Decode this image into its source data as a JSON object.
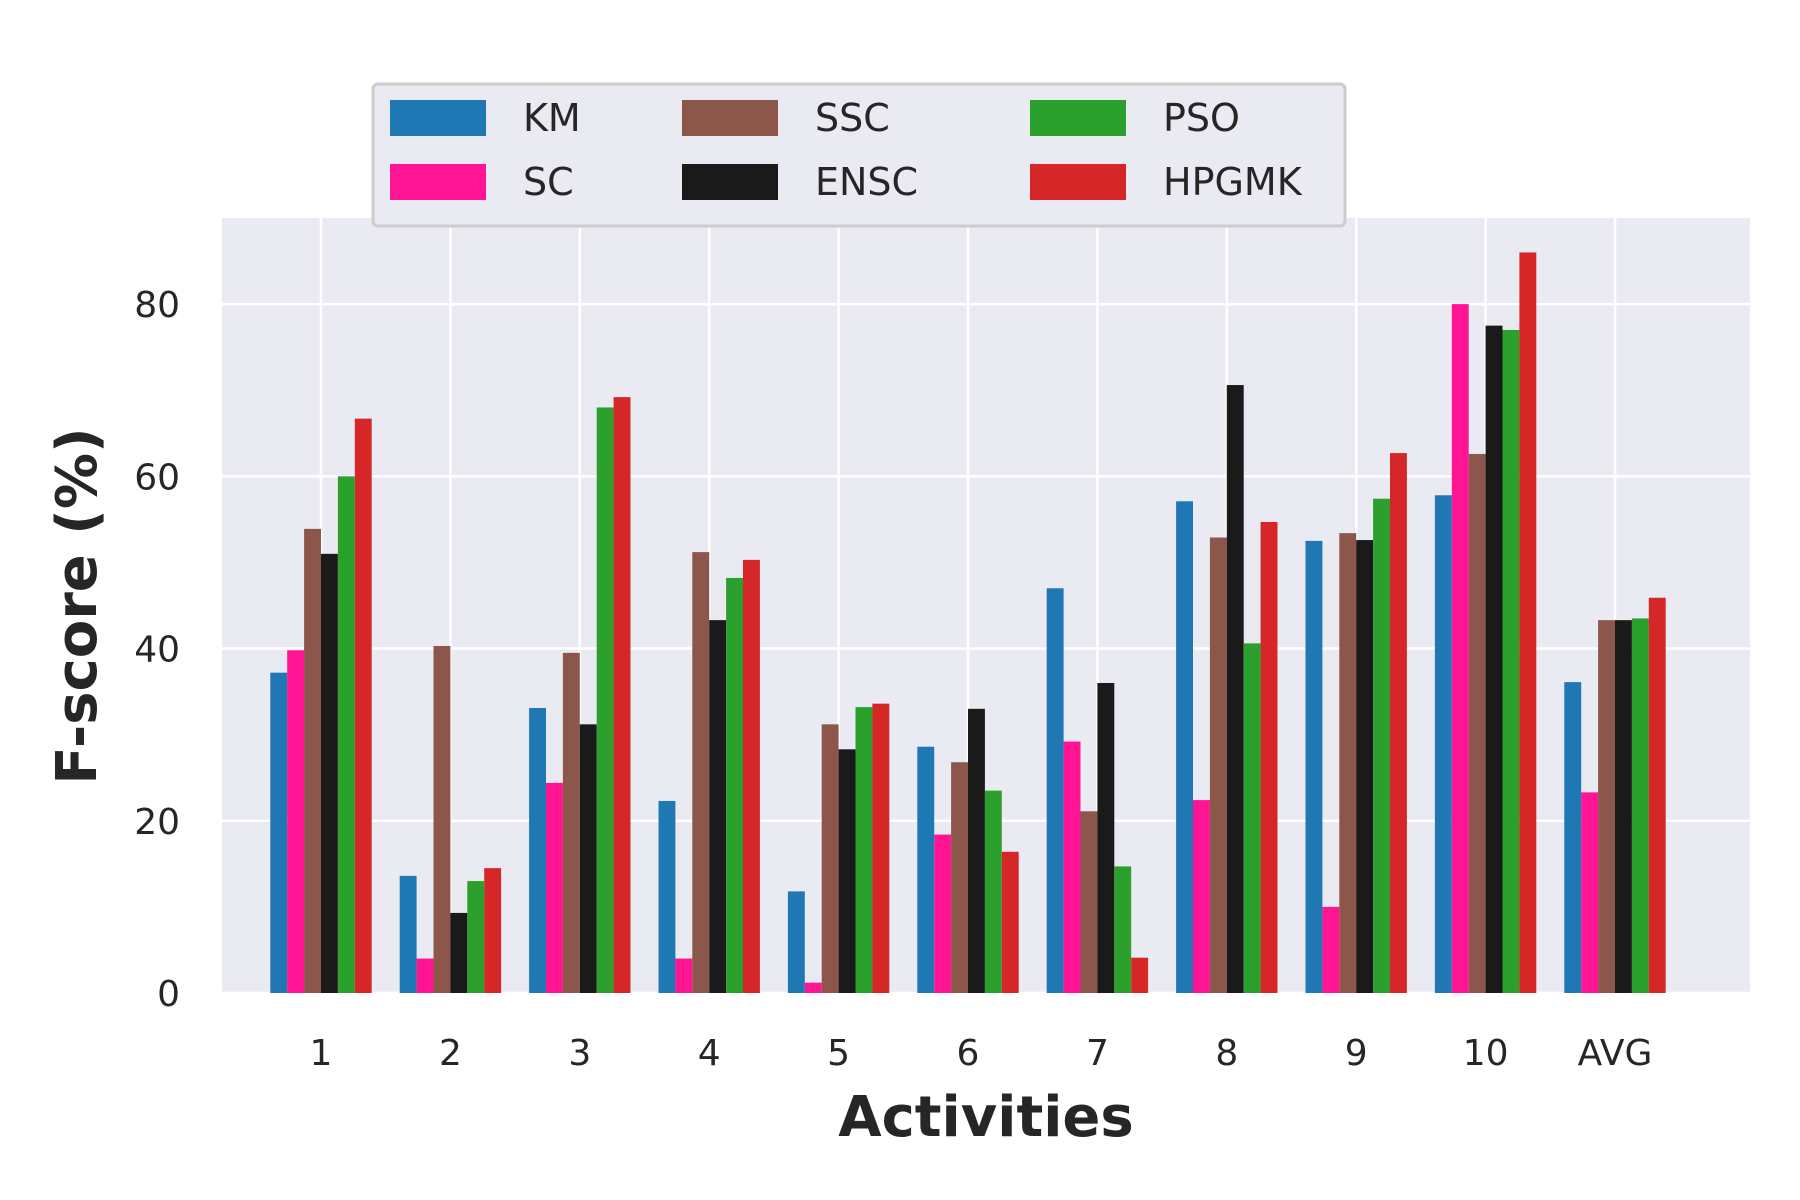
{
  "chart_data": {
    "type": "bar",
    "title": "",
    "xlabel": "Activities",
    "ylabel": "F-score (%)",
    "categories": [
      "1",
      "2",
      "3",
      "4",
      "5",
      "6",
      "7",
      "8",
      "9",
      "10",
      "AVG"
    ],
    "yticks": [
      "0",
      "20",
      "40",
      "60",
      "80"
    ],
    "ylim": [
      0,
      90
    ],
    "grid": true,
    "legend_position": "top",
    "series": [
      {
        "name": "KM",
        "color": "#1f77b4",
        "values": [
          37.2,
          13.6,
          33.1,
          22.3,
          11.8,
          28.6,
          47.0,
          57.1,
          52.5,
          57.8,
          36.1
        ]
      },
      {
        "name": "SC",
        "color": "#ff1493",
        "values": [
          39.8,
          4.0,
          24.4,
          4.0,
          1.2,
          18.4,
          29.2,
          22.4,
          10.0,
          80.0,
          23.3
        ]
      },
      {
        "name": "SSC",
        "color": "#8c564b",
        "values": [
          53.9,
          40.3,
          39.5,
          51.2,
          31.2,
          26.8,
          21.1,
          52.9,
          53.4,
          62.6,
          43.3
        ]
      },
      {
        "name": "ENSC",
        "color": "#1a1a1a",
        "values": [
          51.0,
          9.3,
          31.2,
          43.3,
          28.3,
          33.0,
          36.0,
          70.6,
          52.6,
          77.5,
          43.3
        ]
      },
      {
        "name": "PSO",
        "color": "#2ca02c",
        "values": [
          60.0,
          13.0,
          68.0,
          48.2,
          33.2,
          23.5,
          14.7,
          40.6,
          57.4,
          77.0,
          43.5
        ]
      },
      {
        "name": "HPGMK",
        "color": "#d62728",
        "values": [
          66.7,
          14.5,
          69.2,
          50.3,
          33.6,
          16.4,
          4.1,
          54.7,
          62.7,
          86.0,
          45.9
        ]
      }
    ],
    "legend_order": [
      "KM",
      "SC",
      "SSC",
      "ENSC",
      "PSO",
      "HPGMK"
    ]
  }
}
